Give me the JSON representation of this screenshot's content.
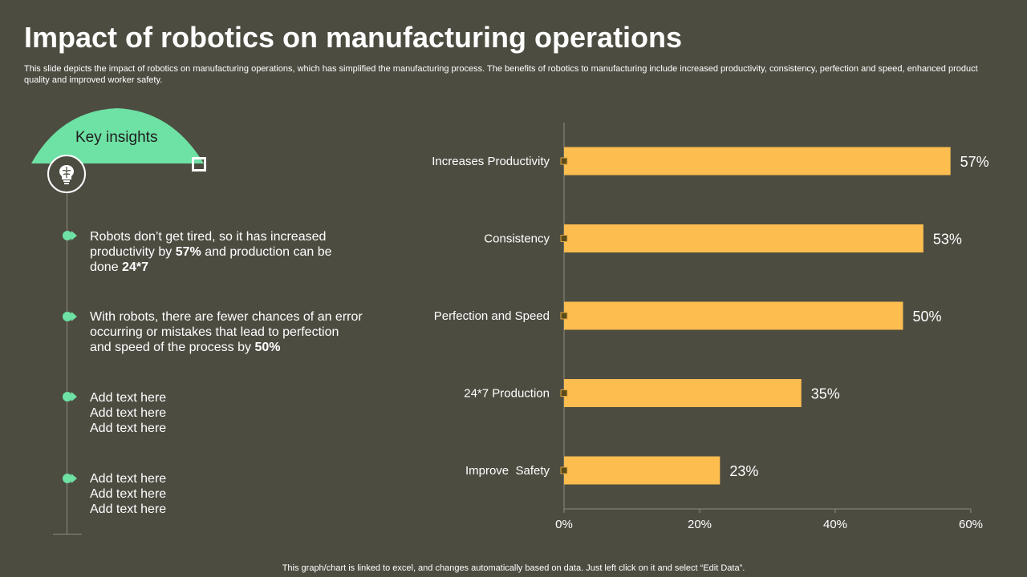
{
  "title": "Impact of robotics on manufacturing operations",
  "subtitle": "This slide depicts the impact of robotics on manufacturing operations, which has simplified the manufacturing process. The benefits of robotics to manufacturing include increased productivity, consistency, perfection and speed, enhanced product quality and improved worker safety.",
  "insights": {
    "heading": "Key insights",
    "icon": "brain-lightbulb-icon",
    "bullets": [
      {
        "pre": "Robots don’t get tired, so it has increased productivity by ",
        "b1": "57%",
        "mid": " and production can be done ",
        "b2": "24*7",
        "post": ""
      },
      {
        "pre": "With robots, there are fewer chances of an error occurring or mistakes that lead to perfection and speed of the process by ",
        "b1": "50%",
        "mid": "",
        "b2": "",
        "post": ""
      }
    ],
    "placeholders": [
      [
        "Add text here",
        "Add text here",
        "Add text here"
      ],
      [
        "Add text here",
        "Add text here",
        "Add text here"
      ]
    ]
  },
  "colors": {
    "background": "#4d4c41",
    "accent": "#6ee1a4",
    "bar": "#fdbd4f",
    "marker": "#5b4b1a"
  },
  "chart_data": {
    "type": "bar",
    "orientation": "horizontal",
    "categories": [
      "Increases Productivity",
      "Consistency",
      "Perfection and Speed",
      "24*7 Production",
      "Improve  Safety"
    ],
    "values": [
      57,
      53,
      50,
      35,
      23
    ],
    "value_labels": [
      "57%",
      "53%",
      "50%",
      "35%",
      "23%"
    ],
    "xlim": [
      0,
      60
    ],
    "xticks": [
      0,
      20,
      40,
      60
    ],
    "xtick_labels": [
      "0%",
      "20%",
      "40%",
      "60%"
    ],
    "grid": false
  },
  "footnote": "This graph/chart is linked to excel,  and changes automatically based on data. Just left click on it and select “Edit Data”."
}
